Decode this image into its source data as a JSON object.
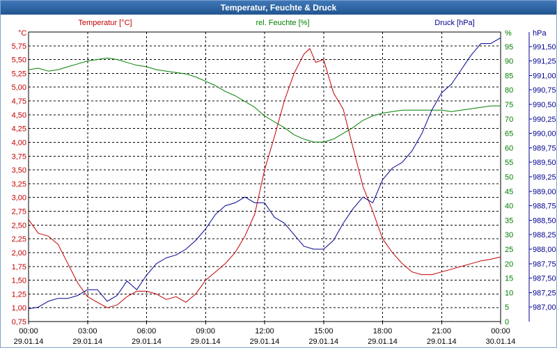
{
  "window": {
    "title": "Temperatur, Feuchte & Druck"
  },
  "chart_data": {
    "type": "line",
    "title": "Temperatur, Feuchte & Druck",
    "grid": true,
    "x": {
      "range": [
        0,
        24
      ],
      "ticks": [
        0,
        3,
        6,
        9,
        12,
        15,
        18,
        21,
        24
      ],
      "tick_labels_time": [
        "00:00",
        "03:00",
        "06:00",
        "09:00",
        "12:00",
        "15:00",
        "18:00",
        "21:00",
        "00:00"
      ],
      "tick_labels_date": [
        "29.01.14",
        "29.01.14",
        "29.01.14",
        "29.01.14",
        "29.01.14",
        "29.01.14",
        "29.01.14",
        "29.01.14",
        "30.01.14"
      ]
    },
    "axes": {
      "temperature": {
        "label": "Temperatur [°C]",
        "unit": "°C",
        "side": "left",
        "range": [
          0.75,
          6.0
        ],
        "color": "#c00000",
        "tick_labels": [
          "0,75",
          "1,00",
          "1,25",
          "1,50",
          "1,75",
          "2,00",
          "2,25",
          "2,50",
          "2,75",
          "3,00",
          "3,25",
          "3,50",
          "3,75",
          "4,00",
          "4,25",
          "4,50",
          "4,75",
          "5,00",
          "5,25",
          "5,50",
          "5,75"
        ]
      },
      "humidity": {
        "label": "rel. Feuchte [%]",
        "unit": "%",
        "side": "right",
        "range": [
          0,
          100
        ],
        "color": "#007f00",
        "tick_labels": [
          "0",
          "5",
          "10",
          "15",
          "20",
          "25",
          "30",
          "35",
          "40",
          "45",
          "50",
          "55",
          "60",
          "65",
          "70",
          "75",
          "80",
          "85",
          "90",
          "95"
        ]
      },
      "pressure": {
        "label": "Druck [hPa]",
        "unit": "hPa",
        "side": "right",
        "range": [
          986.75,
          991.75
        ],
        "color": "#000090",
        "tick_labels": [
          "987,00",
          "987,25",
          "987,50",
          "987,75",
          "988,00",
          "988,25",
          "988,50",
          "988,75",
          "989,00",
          "989,25",
          "989,50",
          "989,75",
          "990,00",
          "990,25",
          "990,50",
          "990,75",
          "991,00",
          "991,25",
          "991,50"
        ]
      }
    },
    "series": [
      {
        "name": "Temperatur [°C]",
        "axis": "temperature",
        "color": "#c00000",
        "x": [
          0,
          0.5,
          1,
          1.5,
          2,
          2.5,
          3,
          3.5,
          4,
          4.5,
          5,
          5.5,
          6,
          6.5,
          7,
          7.5,
          8,
          8.5,
          9,
          9.5,
          10,
          10.5,
          11,
          11.5,
          12,
          12.5,
          13,
          13.5,
          14,
          14.3,
          14.6,
          15,
          15.5,
          16,
          16.5,
          17,
          17.5,
          18,
          18.5,
          19,
          19.5,
          20,
          20.5,
          21,
          21.5,
          22,
          22.5,
          23,
          23.5,
          24
        ],
        "values": [
          2.6,
          2.35,
          2.3,
          2.15,
          1.8,
          1.45,
          1.2,
          1.1,
          1.0,
          1.05,
          1.2,
          1.3,
          1.3,
          1.25,
          1.15,
          1.2,
          1.1,
          1.25,
          1.5,
          1.65,
          1.8,
          2.0,
          2.3,
          2.7,
          3.5,
          4.1,
          4.75,
          5.25,
          5.6,
          5.7,
          5.45,
          5.5,
          4.9,
          4.6,
          3.9,
          3.2,
          2.75,
          2.25,
          2.0,
          1.8,
          1.65,
          1.6,
          1.6,
          1.65,
          1.7,
          1.75,
          1.8,
          1.85,
          1.88,
          1.92
        ]
      },
      {
        "name": "rel. Feuchte [%]",
        "axis": "humidity",
        "color": "#007f00",
        "x": [
          0,
          0.5,
          1,
          1.5,
          2,
          2.5,
          3,
          3.5,
          4,
          4.5,
          5,
          5.5,
          6,
          6.5,
          7,
          7.5,
          8,
          8.5,
          9,
          9.5,
          10,
          10.5,
          11,
          11.5,
          12,
          12.5,
          13,
          13.5,
          14,
          14.5,
          15,
          15.5,
          16,
          16.5,
          17,
          17.5,
          18,
          18.5,
          19,
          19.5,
          20,
          20.5,
          21,
          21.5,
          22,
          22.5,
          23,
          23.5,
          24
        ],
        "values": [
          87,
          87.5,
          86.5,
          87,
          88,
          89,
          90,
          90.5,
          91,
          90.5,
          89.5,
          88.5,
          88,
          87,
          86.5,
          86,
          85.5,
          84.5,
          83,
          81.5,
          79.5,
          78,
          76,
          74,
          71,
          69,
          67,
          64.5,
          63,
          62,
          62,
          63,
          65,
          67,
          69.5,
          71,
          72,
          72.5,
          73,
          73,
          73,
          73,
          73,
          72.5,
          73,
          73.5,
          74,
          74.5,
          74.5
        ]
      },
      {
        "name": "Druck [hPa]",
        "axis": "pressure",
        "color": "#000090",
        "x": [
          0,
          0.5,
          1,
          1.5,
          2,
          2.5,
          3,
          3.5,
          4,
          4.5,
          5,
          5.5,
          6,
          6.5,
          7,
          7.5,
          8,
          8.5,
          9,
          9.5,
          10,
          10.5,
          11,
          11.5,
          12,
          12.5,
          13,
          13.5,
          14,
          14.5,
          15,
          15.5,
          16,
          16.5,
          17,
          17.5,
          18,
          18.5,
          19,
          19.5,
          20,
          20.5,
          21,
          21.5,
          22,
          22.5,
          23,
          23.5,
          24
        ],
        "values": [
          986.97,
          987.0,
          987.1,
          987.15,
          987.15,
          987.2,
          987.3,
          987.3,
          987.1,
          987.2,
          987.45,
          987.3,
          987.55,
          987.75,
          987.85,
          987.9,
          988.0,
          988.15,
          988.35,
          988.6,
          988.75,
          988.8,
          988.9,
          988.8,
          988.8,
          988.55,
          988.45,
          988.25,
          988.05,
          988.0,
          988.0,
          988.15,
          988.45,
          988.7,
          988.9,
          988.8,
          989.2,
          989.4,
          989.5,
          989.7,
          990.0,
          990.4,
          990.7,
          990.85,
          991.1,
          991.35,
          991.55,
          991.55,
          991.65
        ]
      }
    ]
  }
}
